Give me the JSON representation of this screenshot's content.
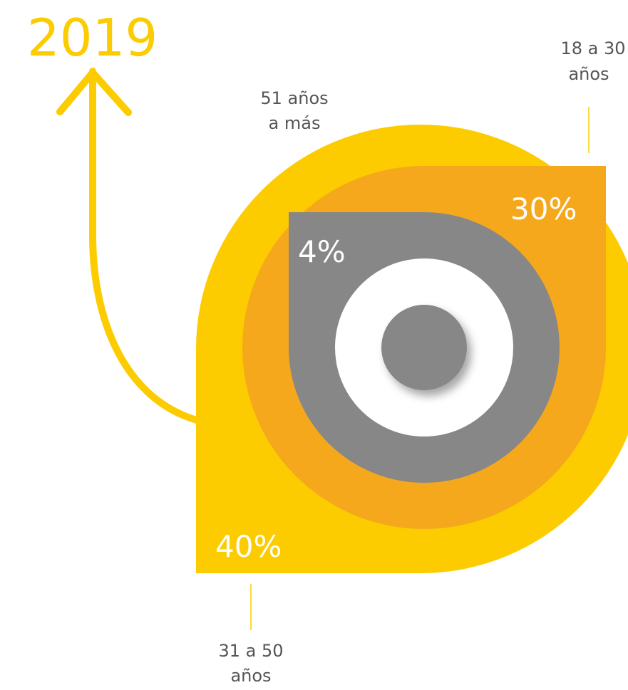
{
  "title": "2019",
  "segments": [
    {
      "label": [
        "18 a 30",
        "años"
      ],
      "value": "30%"
    },
    {
      "label": [
        "51 años",
        "a más"
      ],
      "value": "4%"
    },
    {
      "label": [
        "31 a 50",
        "años"
      ],
      "value": "40%"
    }
  ]
}
